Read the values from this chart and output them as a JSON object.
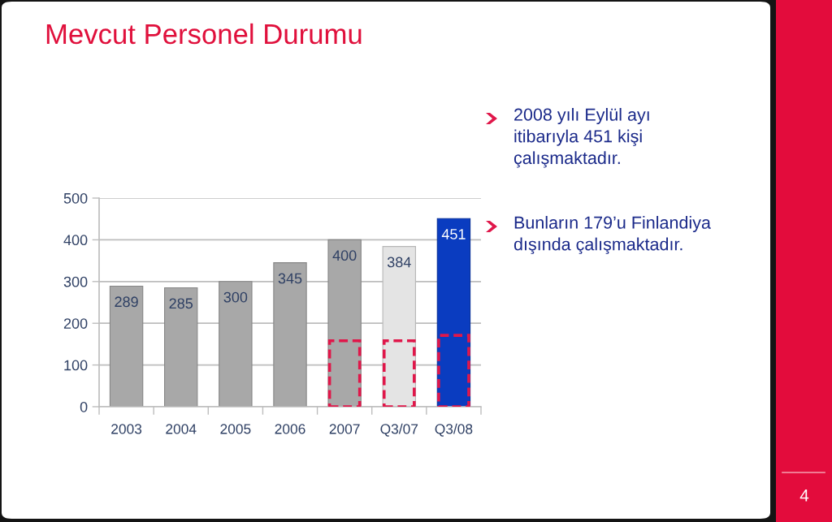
{
  "chart_data": {
    "type": "bar",
    "title": "Mevcut Personel Durumu",
    "categories": [
      "2003",
      "2004",
      "2005",
      "2006",
      "2007",
      "Q3/07",
      "Q3/08"
    ],
    "series": [
      {
        "colors": [
          "#a8a8a8",
          "#a8a8a8",
          "#a8a8a8",
          "#a8a8a8",
          "#a8a8a8",
          "#e4e4e4",
          "#0a3cc0"
        ],
        "values": [
          289,
          285,
          300,
          345,
          400,
          384,
          451
        ],
        "value_labels": [
          "289",
          "285",
          "300",
          "345",
          "400",
          "384",
          "451"
        ]
      },
      {
        "color": "#e0174a",
        "line_style": "dashed",
        "values": [
          null,
          null,
          null,
          null,
          158,
          158,
          171
        ]
      }
    ],
    "ylim": [
      0,
      500
    ],
    "yticks": [
      0,
      100,
      200,
      300,
      400,
      500
    ],
    "grid": "y",
    "annotations": [
      "2008 yılı Eylül ayı\nitibarıyla 451 kişi\nçalışmaktadır.",
      "Bunların 179’u Finlandiya\ndışında çalışmaktadır.",
      "4"
    ]
  }
}
